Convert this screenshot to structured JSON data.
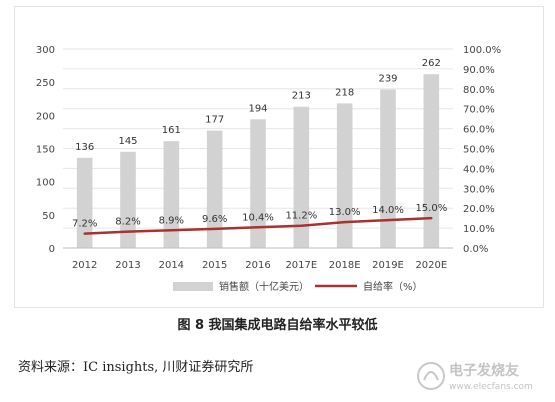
{
  "chart_data": {
    "type": "bar",
    "categories": [
      "2012",
      "2013",
      "2014",
      "2015",
      "2016",
      "2017E",
      "2018E",
      "2019E",
      "2020E"
    ],
    "series": [
      {
        "name": "销售额（十亿美元）",
        "type": "bar",
        "axis": "left",
        "values": [
          136,
          145,
          161,
          177,
          194,
          213,
          218,
          239,
          262
        ],
        "labels": [
          "136",
          "145",
          "161",
          "177",
          "194",
          "213",
          "218",
          "239",
          "262"
        ],
        "color": "#d2d2d2"
      },
      {
        "name": "自给率（%）",
        "type": "line",
        "axis": "right",
        "values": [
          7.2,
          8.2,
          8.9,
          9.6,
          10.4,
          11.2,
          13.0,
          14.0,
          15.0
        ],
        "labels": [
          "7.2%",
          "8.2%",
          "8.9%",
          "9.6%",
          "10.4%",
          "11.2%",
          "13.0%",
          "14.0%",
          "15.0%"
        ],
        "color": "#a83232"
      }
    ],
    "ylim": [
      0,
      300
    ],
    "y_ticks": [
      "0",
      "50",
      "100",
      "150",
      "200",
      "250",
      "300"
    ],
    "y2lim": [
      0,
      100
    ],
    "y2_ticks": [
      "0.0%",
      "10.0%",
      "20.0%",
      "30.0%",
      "40.0%",
      "50.0%",
      "60.0%",
      "70.0%",
      "80.0%",
      "90.0%",
      "100.0%"
    ],
    "grid": true,
    "legend": "bottom"
  },
  "caption": "图 8  我国集成电路自给率水平较低",
  "source": "资料来源：IC insights, 川财证券研究所",
  "watermark": {
    "text_cn": "电子发烧友",
    "text_en": "www.elecfans.com"
  }
}
